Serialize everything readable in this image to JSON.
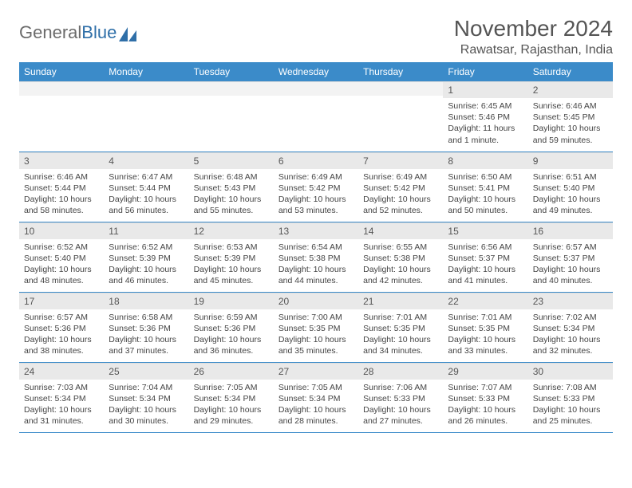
{
  "logo": {
    "text_gray": "General",
    "text_blue": "Blue"
  },
  "title": "November 2024",
  "location": "Rawatsar, Rajasthan, India",
  "colors": {
    "header_bg": "#3b8bc9",
    "header_text": "#ffffff",
    "daynum_bg": "#e9e9e9",
    "row_border": "#3b8bc9",
    "logo_gray": "#6b6b6b",
    "logo_blue": "#2f6fa8"
  },
  "day_headers": [
    "Sunday",
    "Monday",
    "Tuesday",
    "Wednesday",
    "Thursday",
    "Friday",
    "Saturday"
  ],
  "weeks": [
    [
      {
        "n": "",
        "sr": "",
        "ss": "",
        "dl": ""
      },
      {
        "n": "",
        "sr": "",
        "ss": "",
        "dl": ""
      },
      {
        "n": "",
        "sr": "",
        "ss": "",
        "dl": ""
      },
      {
        "n": "",
        "sr": "",
        "ss": "",
        "dl": ""
      },
      {
        "n": "",
        "sr": "",
        "ss": "",
        "dl": ""
      },
      {
        "n": "1",
        "sr": "Sunrise: 6:45 AM",
        "ss": "Sunset: 5:46 PM",
        "dl": "Daylight: 11 hours and 1 minute."
      },
      {
        "n": "2",
        "sr": "Sunrise: 6:46 AM",
        "ss": "Sunset: 5:45 PM",
        "dl": "Daylight: 10 hours and 59 minutes."
      }
    ],
    [
      {
        "n": "3",
        "sr": "Sunrise: 6:46 AM",
        "ss": "Sunset: 5:44 PM",
        "dl": "Daylight: 10 hours and 58 minutes."
      },
      {
        "n": "4",
        "sr": "Sunrise: 6:47 AM",
        "ss": "Sunset: 5:44 PM",
        "dl": "Daylight: 10 hours and 56 minutes."
      },
      {
        "n": "5",
        "sr": "Sunrise: 6:48 AM",
        "ss": "Sunset: 5:43 PM",
        "dl": "Daylight: 10 hours and 55 minutes."
      },
      {
        "n": "6",
        "sr": "Sunrise: 6:49 AM",
        "ss": "Sunset: 5:42 PM",
        "dl": "Daylight: 10 hours and 53 minutes."
      },
      {
        "n": "7",
        "sr": "Sunrise: 6:49 AM",
        "ss": "Sunset: 5:42 PM",
        "dl": "Daylight: 10 hours and 52 minutes."
      },
      {
        "n": "8",
        "sr": "Sunrise: 6:50 AM",
        "ss": "Sunset: 5:41 PM",
        "dl": "Daylight: 10 hours and 50 minutes."
      },
      {
        "n": "9",
        "sr": "Sunrise: 6:51 AM",
        "ss": "Sunset: 5:40 PM",
        "dl": "Daylight: 10 hours and 49 minutes."
      }
    ],
    [
      {
        "n": "10",
        "sr": "Sunrise: 6:52 AM",
        "ss": "Sunset: 5:40 PM",
        "dl": "Daylight: 10 hours and 48 minutes."
      },
      {
        "n": "11",
        "sr": "Sunrise: 6:52 AM",
        "ss": "Sunset: 5:39 PM",
        "dl": "Daylight: 10 hours and 46 minutes."
      },
      {
        "n": "12",
        "sr": "Sunrise: 6:53 AM",
        "ss": "Sunset: 5:39 PM",
        "dl": "Daylight: 10 hours and 45 minutes."
      },
      {
        "n": "13",
        "sr": "Sunrise: 6:54 AM",
        "ss": "Sunset: 5:38 PM",
        "dl": "Daylight: 10 hours and 44 minutes."
      },
      {
        "n": "14",
        "sr": "Sunrise: 6:55 AM",
        "ss": "Sunset: 5:38 PM",
        "dl": "Daylight: 10 hours and 42 minutes."
      },
      {
        "n": "15",
        "sr": "Sunrise: 6:56 AM",
        "ss": "Sunset: 5:37 PM",
        "dl": "Daylight: 10 hours and 41 minutes."
      },
      {
        "n": "16",
        "sr": "Sunrise: 6:57 AM",
        "ss": "Sunset: 5:37 PM",
        "dl": "Daylight: 10 hours and 40 minutes."
      }
    ],
    [
      {
        "n": "17",
        "sr": "Sunrise: 6:57 AM",
        "ss": "Sunset: 5:36 PM",
        "dl": "Daylight: 10 hours and 38 minutes."
      },
      {
        "n": "18",
        "sr": "Sunrise: 6:58 AM",
        "ss": "Sunset: 5:36 PM",
        "dl": "Daylight: 10 hours and 37 minutes."
      },
      {
        "n": "19",
        "sr": "Sunrise: 6:59 AM",
        "ss": "Sunset: 5:36 PM",
        "dl": "Daylight: 10 hours and 36 minutes."
      },
      {
        "n": "20",
        "sr": "Sunrise: 7:00 AM",
        "ss": "Sunset: 5:35 PM",
        "dl": "Daylight: 10 hours and 35 minutes."
      },
      {
        "n": "21",
        "sr": "Sunrise: 7:01 AM",
        "ss": "Sunset: 5:35 PM",
        "dl": "Daylight: 10 hours and 34 minutes."
      },
      {
        "n": "22",
        "sr": "Sunrise: 7:01 AM",
        "ss": "Sunset: 5:35 PM",
        "dl": "Daylight: 10 hours and 33 minutes."
      },
      {
        "n": "23",
        "sr": "Sunrise: 7:02 AM",
        "ss": "Sunset: 5:34 PM",
        "dl": "Daylight: 10 hours and 32 minutes."
      }
    ],
    [
      {
        "n": "24",
        "sr": "Sunrise: 7:03 AM",
        "ss": "Sunset: 5:34 PM",
        "dl": "Daylight: 10 hours and 31 minutes."
      },
      {
        "n": "25",
        "sr": "Sunrise: 7:04 AM",
        "ss": "Sunset: 5:34 PM",
        "dl": "Daylight: 10 hours and 30 minutes."
      },
      {
        "n": "26",
        "sr": "Sunrise: 7:05 AM",
        "ss": "Sunset: 5:34 PM",
        "dl": "Daylight: 10 hours and 29 minutes."
      },
      {
        "n": "27",
        "sr": "Sunrise: 7:05 AM",
        "ss": "Sunset: 5:34 PM",
        "dl": "Daylight: 10 hours and 28 minutes."
      },
      {
        "n": "28",
        "sr": "Sunrise: 7:06 AM",
        "ss": "Sunset: 5:33 PM",
        "dl": "Daylight: 10 hours and 27 minutes."
      },
      {
        "n": "29",
        "sr": "Sunrise: 7:07 AM",
        "ss": "Sunset: 5:33 PM",
        "dl": "Daylight: 10 hours and 26 minutes."
      },
      {
        "n": "30",
        "sr": "Sunrise: 7:08 AM",
        "ss": "Sunset: 5:33 PM",
        "dl": "Daylight: 10 hours and 25 minutes."
      }
    ]
  ]
}
